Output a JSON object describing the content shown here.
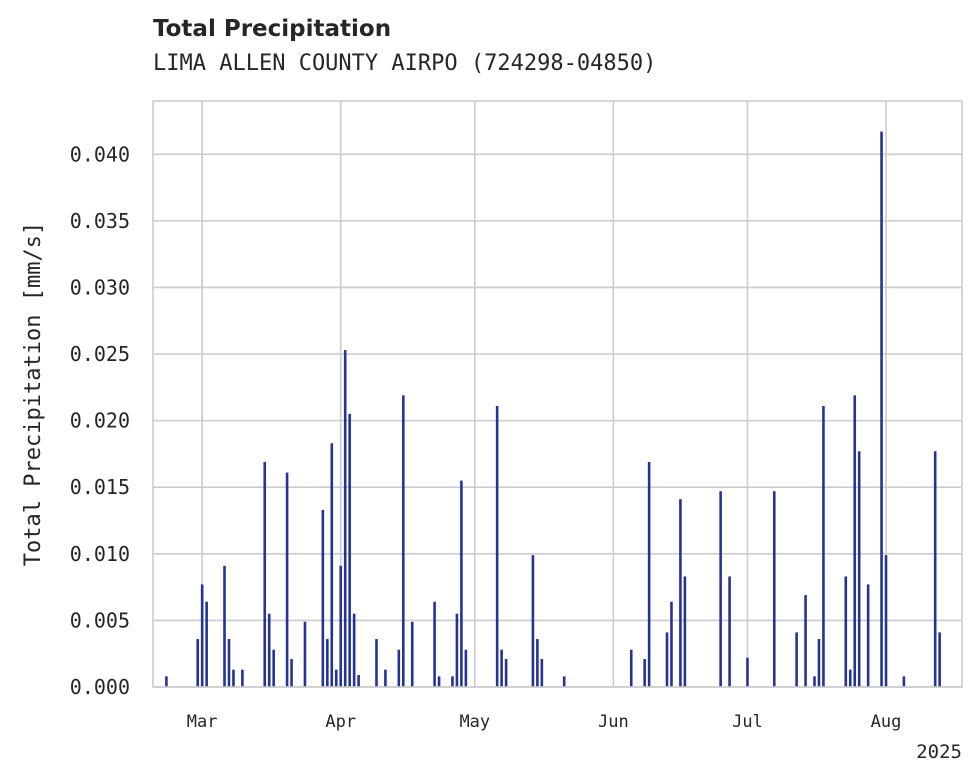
{
  "title": "Total Precipitation",
  "subtitle": "LIMA ALLEN COUNTY AIRPO (724298-04850)",
  "chart_data": {
    "type": "bar",
    "ylabel": "Total Precipitation [mm/s]",
    "xlabel": "",
    "ylim": [
      0,
      0.044
    ],
    "y_ticks": [
      "0.000",
      "0.005",
      "0.010",
      "0.015",
      "0.020",
      "0.025",
      "0.030",
      "0.035",
      "0.040"
    ],
    "x_tick_labels": [
      "Mar",
      "Apr",
      "May",
      "Jun",
      "Jul",
      "Aug"
    ],
    "x_tick_dates": [
      "2025-03-01",
      "2025-04-01",
      "2025-05-01",
      "2025-06-01",
      "2025-07-01",
      "2025-08-01"
    ],
    "x_offset_label": "2025",
    "xlim": [
      "2025-02-18",
      "2025-08-18"
    ],
    "grid": true,
    "bar_color": "#253494",
    "series": [
      {
        "dates": [
          "2025-02-21",
          "2025-02-28",
          "2025-03-01",
          "2025-03-02",
          "2025-03-04",
          "2025-03-06",
          "2025-03-07",
          "2025-03-08",
          "2025-03-10",
          "2025-03-15",
          "2025-03-16",
          "2025-03-17",
          "2025-03-20",
          "2025-03-21",
          "2025-03-24",
          "2025-03-28",
          "2025-03-29",
          "2025-03-30",
          "2025-03-31",
          "2025-04-01",
          "2025-04-02",
          "2025-04-03",
          "2025-04-04",
          "2025-04-05",
          "2025-04-09",
          "2025-04-11",
          "2025-04-14",
          "2025-04-15",
          "2025-04-17",
          "2025-04-22",
          "2025-04-23",
          "2025-04-26",
          "2025-04-27",
          "2025-04-28",
          "2025-04-29",
          "2025-05-06",
          "2025-05-07",
          "2025-05-08",
          "2025-05-14",
          "2025-05-15",
          "2025-05-16",
          "2025-05-21",
          "2025-06-05",
          "2025-06-08",
          "2025-06-09",
          "2025-06-13",
          "2025-06-14",
          "2025-06-16",
          "2025-06-17",
          "2025-06-25",
          "2025-06-27",
          "2025-07-01",
          "2025-07-07",
          "2025-07-12",
          "2025-07-14",
          "2025-07-16",
          "2025-07-17",
          "2025-07-18",
          "2025-07-23",
          "2025-07-24",
          "2025-07-25",
          "2025-07-26",
          "2025-07-28",
          "2025-07-31",
          "2025-08-01",
          "2025-08-05",
          "2025-08-12",
          "2025-08-13"
        ],
        "values": [
          0.0008,
          0.0036,
          0.0077,
          0.0064,
          0.0,
          0.0091,
          0.0036,
          0.0013,
          0.0013,
          0.0169,
          0.0055,
          0.0028,
          0.0161,
          0.0021,
          0.0049,
          0.0133,
          0.0036,
          0.0183,
          0.0013,
          0.0091,
          0.0253,
          0.0205,
          0.0055,
          0.0009,
          0.0036,
          0.0013,
          0.0028,
          0.0219,
          0.0049,
          0.0064,
          0.0008,
          0.0008,
          0.0055,
          0.0155,
          0.0028,
          0.0211,
          0.0028,
          0.0021,
          0.0099,
          0.0036,
          0.0021,
          0.0008,
          0.0028,
          0.0021,
          0.0169,
          0.0041,
          0.0064,
          0.0141,
          0.0083,
          0.0147,
          0.0083,
          0.0022,
          0.0147,
          0.0041,
          0.0069,
          0.0008,
          0.0036,
          0.0211,
          0.0083,
          0.0013,
          0.0219,
          0.0177,
          0.0077,
          0.0417,
          0.0099,
          0.0008,
          0.0177,
          0.0041
        ]
      }
    ]
  }
}
